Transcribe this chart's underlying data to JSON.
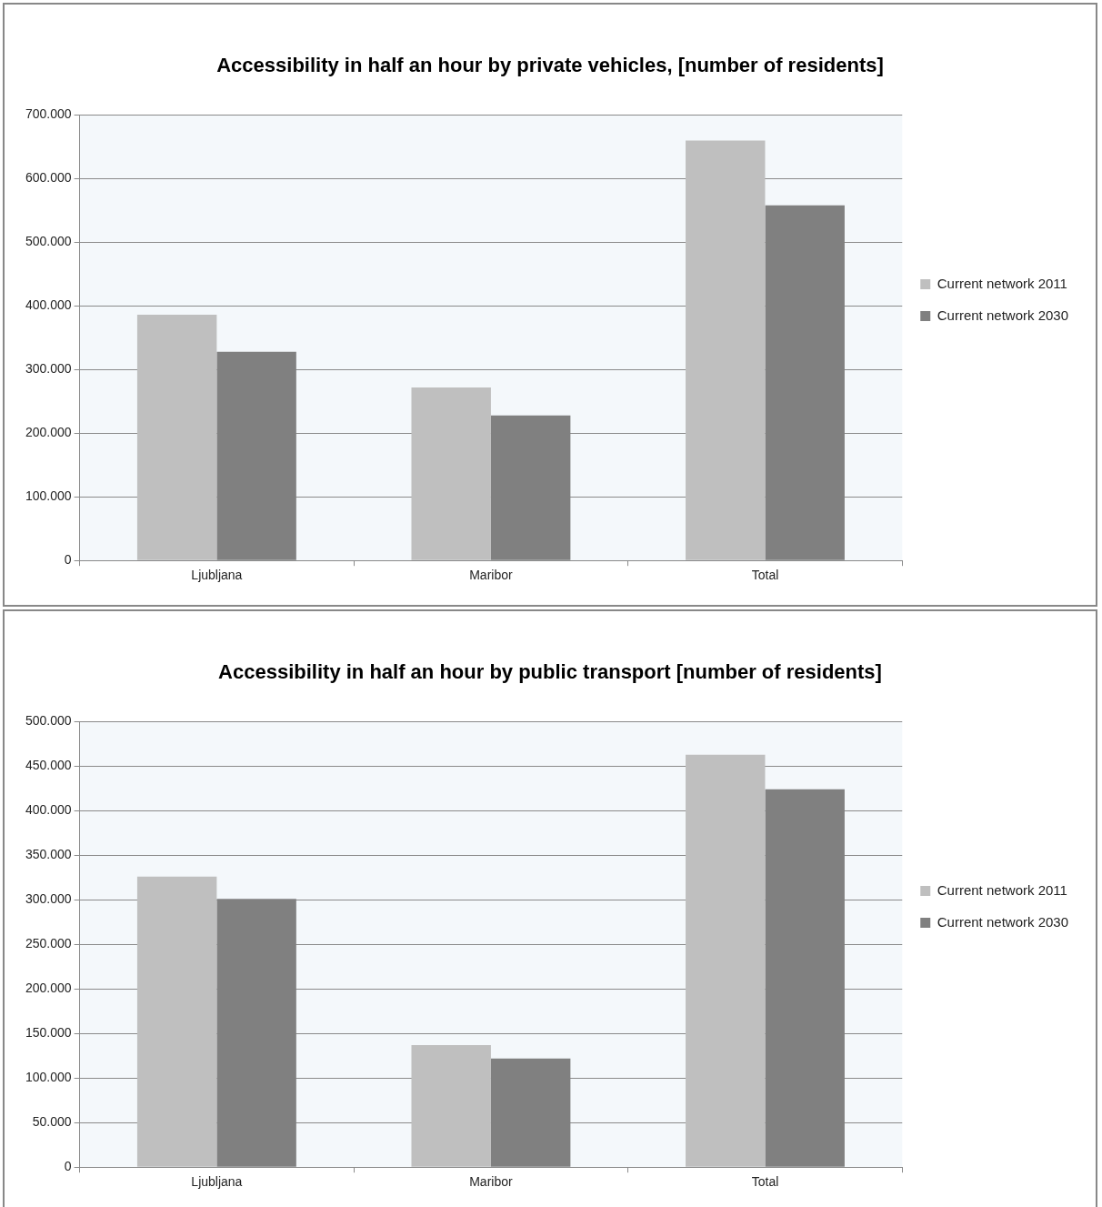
{
  "chart_data": [
    {
      "type": "bar",
      "title": "Accessibility in half an hour by private vehicles, [number of residents]",
      "categories": [
        "Ljubljana",
        "Maribor",
        "Total"
      ],
      "series": [
        {
          "name": "Current network 2011",
          "color": "#bfbfbf",
          "values": [
            386000,
            272000,
            660000
          ]
        },
        {
          "name": "Current network 2030",
          "color": "#808080",
          "values": [
            328000,
            228000,
            558000
          ]
        }
      ],
      "ylim": [
        0,
        700000
      ],
      "yticks": [
        {
          "value": 0,
          "label": "0"
        },
        {
          "value": 100000,
          "label": "100.000"
        },
        {
          "value": 200000,
          "label": "200.000"
        },
        {
          "value": 300000,
          "label": "300.000"
        },
        {
          "value": 400000,
          "label": "400.000"
        },
        {
          "value": 500000,
          "label": "500.000"
        },
        {
          "value": 600000,
          "label": "600.000"
        },
        {
          "value": 700000,
          "label": "700.000"
        }
      ],
      "grid": "y",
      "legend": "right"
    },
    {
      "type": "bar",
      "title": "Accessibility in half an hour by public transport [number of residents]",
      "categories": [
        "Ljubljana",
        "Maribor",
        "Total"
      ],
      "series": [
        {
          "name": "Current network 2011",
          "color": "#bfbfbf",
          "values": [
            326000,
            137000,
            463000
          ]
        },
        {
          "name": "Current network 2030",
          "color": "#808080",
          "values": [
            301000,
            122000,
            424000
          ]
        }
      ],
      "ylim": [
        0,
        500000
      ],
      "yticks": [
        {
          "value": 0,
          "label": "0"
        },
        {
          "value": 50000,
          "label": "50.000"
        },
        {
          "value": 100000,
          "label": "100.000"
        },
        {
          "value": 150000,
          "label": "150.000"
        },
        {
          "value": 200000,
          "label": "200.000"
        },
        {
          "value": 250000,
          "label": "250.000"
        },
        {
          "value": 300000,
          "label": "300.000"
        },
        {
          "value": 350000,
          "label": "350.000"
        },
        {
          "value": 400000,
          "label": "400.000"
        },
        {
          "value": 450000,
          "label": "450.000"
        },
        {
          "value": 500000,
          "label": "500.000"
        }
      ],
      "grid": "y",
      "legend": "right"
    }
  ]
}
